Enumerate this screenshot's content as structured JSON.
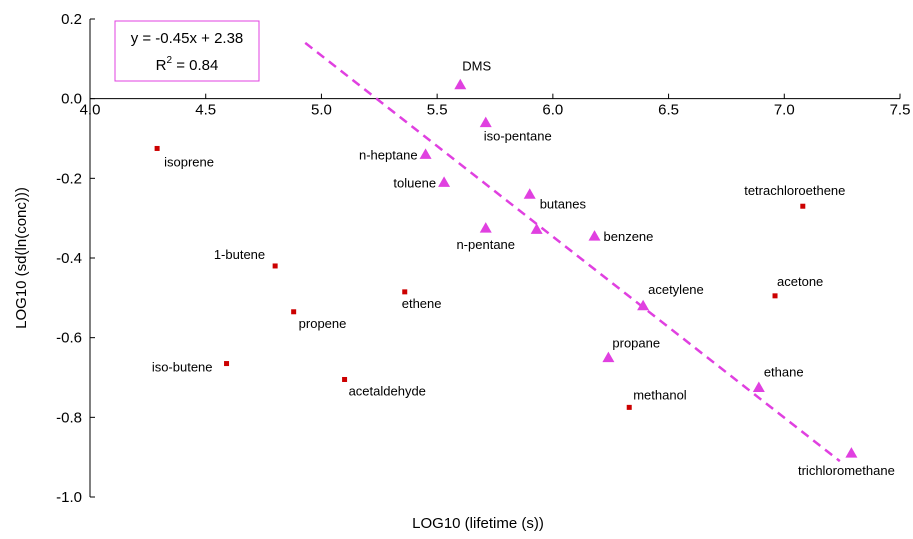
{
  "chart_data": {
    "type": "scatter",
    "xlabel": "LOG10 (lifetime (s))",
    "ylabel": "LOG10 (sd(ln(conc)))",
    "xlim": [
      4.0,
      7.5
    ],
    "ylim": [
      -1.0,
      0.2
    ],
    "x_ticks": [
      "4.0",
      "4.5",
      "5.0",
      "5.5",
      "6.0",
      "6.5",
      "7.0",
      "7.5"
    ],
    "y_ticks": [
      "0.2",
      "0.0",
      "-0.2",
      "-0.4",
      "-0.6",
      "-0.8",
      "-1.0"
    ],
    "x_tick_values": [
      4.0,
      4.5,
      5.0,
      5.5,
      6.0,
      6.5,
      7.0,
      7.5
    ],
    "y_tick_values": [
      0.2,
      0.0,
      -0.2,
      -0.4,
      -0.6,
      -0.8,
      -1.0
    ],
    "grid": false,
    "equation": "y = -0.45x + 2.38",
    "r2_base": "R",
    "r2_exp": "2",
    "r2_value": " = 0.84",
    "fit": {
      "x": [
        4.93,
        7.24
      ],
      "y": [
        0.14,
        -0.91
      ],
      "color": "#e040e0"
    },
    "series": [
      {
        "marker": "triangle",
        "color": "#e040e0",
        "points": [
          {
            "label": "DMS",
            "x": 5.6,
            "y": 0.035
          },
          {
            "label": "iso-pentane",
            "x": 5.71,
            "y": -0.06
          },
          {
            "label": "n-heptane",
            "x": 5.45,
            "y": -0.14
          },
          {
            "label": "toluene",
            "x": 5.53,
            "y": -0.21
          },
          {
            "label": "butanes",
            "x": 5.9,
            "y": -0.24
          },
          {
            "label": "n-pentane",
            "x": 5.71,
            "y": -0.325
          },
          {
            "label": "",
            "x": 5.93,
            "y": -0.328
          },
          {
            "label": "benzene",
            "x": 6.18,
            "y": -0.345
          },
          {
            "label": "acetylene",
            "x": 6.39,
            "y": -0.52
          },
          {
            "label": "propane",
            "x": 6.24,
            "y": -0.65
          },
          {
            "label": "ethane",
            "x": 6.89,
            "y": -0.725
          },
          {
            "label": "trichloromethane",
            "x": 7.29,
            "y": -0.89
          }
        ]
      },
      {
        "marker": "square",
        "color": "#cc0000",
        "points": [
          {
            "label": "isoprene",
            "x": 4.29,
            "y": -0.125
          },
          {
            "label": "1-butene",
            "x": 4.8,
            "y": -0.42
          },
          {
            "label": "propene",
            "x": 4.88,
            "y": -0.535
          },
          {
            "label": "ethene",
            "x": 5.36,
            "y": -0.485
          },
          {
            "label": "iso-butene",
            "x": 4.59,
            "y": -0.665
          },
          {
            "label": "acetaldehyde",
            "x": 5.1,
            "y": -0.705
          },
          {
            "label": "methanol",
            "x": 6.33,
            "y": -0.775
          },
          {
            "label": "tetrachloroethene",
            "x": 7.08,
            "y": -0.27
          },
          {
            "label": "acetone",
            "x": 6.96,
            "y": -0.495
          }
        ]
      }
    ]
  }
}
